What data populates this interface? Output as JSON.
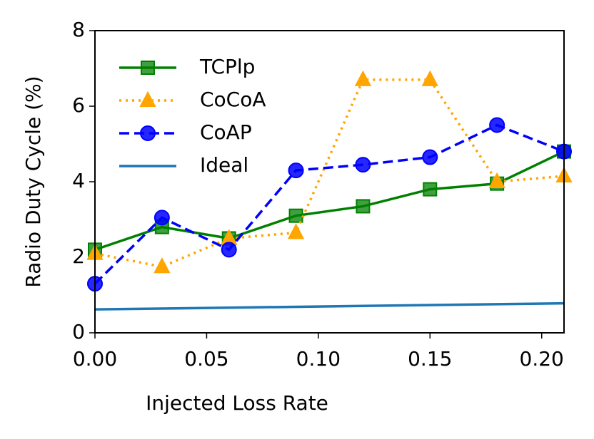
{
  "chart_data": {
    "type": "line",
    "x_label": "Injected Loss Rate",
    "y_label": "Radio Duty Cycle (%)",
    "x": [
      0,
      0.03,
      0.06,
      0.09,
      0.12,
      0.15,
      0.18,
      0.21
    ],
    "series": [
      {
        "name": "TCPlp",
        "color": "#008000",
        "marker": "square",
        "linestyle": "solid",
        "values": [
          2.2,
          2.8,
          2.5,
          3.1,
          3.35,
          3.8,
          3.95,
          4.8
        ]
      },
      {
        "name": "CoCoA",
        "color": "#ffa500",
        "marker": "triangle",
        "linestyle": "dotted",
        "values": [
          2.1,
          1.75,
          2.5,
          2.65,
          6.7,
          6.7,
          4.0,
          4.15
        ]
      },
      {
        "name": "CoAP",
        "color": "#0000ff",
        "marker": "circle",
        "linestyle": "dashed",
        "values": [
          1.3,
          3.05,
          2.2,
          4.3,
          4.45,
          4.65,
          5.5,
          4.8
        ]
      },
      {
        "name": "Ideal",
        "color": "#1f77b4",
        "marker": "none",
        "linestyle": "solid",
        "x": [
          0,
          0.21
        ],
        "values": [
          0.62,
          0.78
        ]
      }
    ],
    "xlim": [
      0,
      0.21
    ],
    "ylim": [
      0,
      8
    ],
    "xticks": [
      {
        "value": 0,
        "label": "0.00"
      },
      0.05,
      {
        "value": 0.1,
        "label": "0.10"
      },
      0.15,
      {
        "value": 0.2,
        "label": "0.20"
      }
    ],
    "yticks": [
      0,
      2,
      4,
      6,
      8
    ],
    "legend": "upper left",
    "grid": false
  }
}
